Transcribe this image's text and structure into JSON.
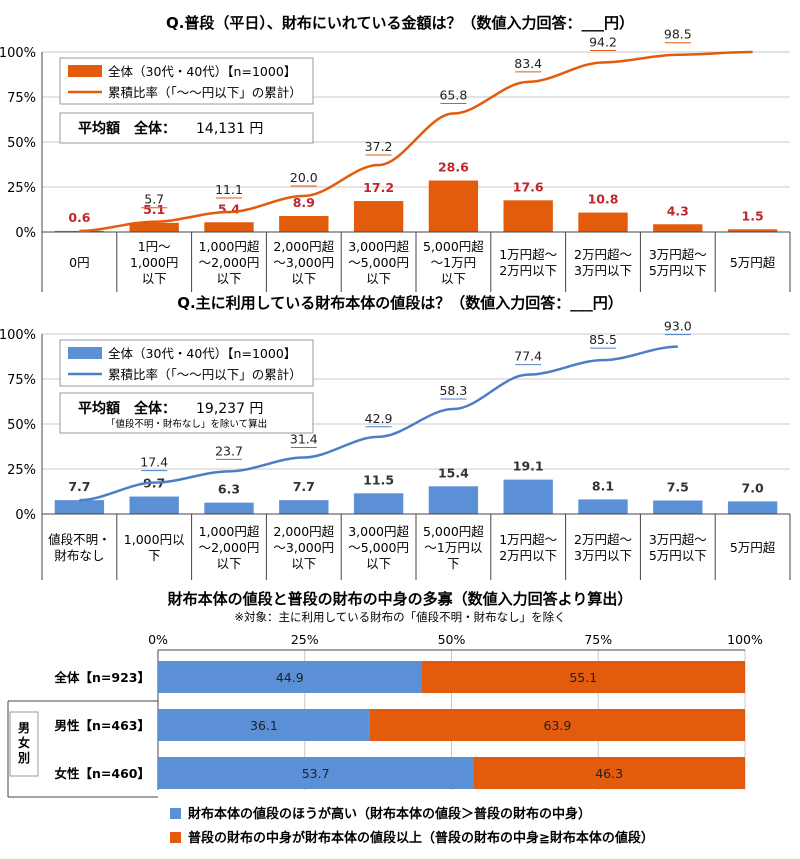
{
  "chart_data": [
    {
      "type": "bar",
      "title": "Q.普段（平日）、財布にいれている金額は？（数値入力回答：___円）",
      "categories": [
        "0円",
        "1円～\n1,000円\n以下",
        "1,000円超\n～2,000円\n以下",
        "2,000円超\n～3,000円\n以下",
        "3,000円超\n～5,000円\n以下",
        "5,000円超\n～1万円\n以下",
        "1万円超～\n2万円以下",
        "2万円超～\n3万円以下",
        "3万円超～\n5万円以下",
        "5万円超"
      ],
      "ylim": [
        0,
        100
      ],
      "yticks": [
        "0%",
        "25%",
        "50%",
        "75%",
        "100%"
      ],
      "series": [
        {
          "name": "全体（30代・40代）【n=1000】",
          "kind": "bar",
          "color": "#e35b0c",
          "label_color": "#c0262c",
          "values": [
            0.6,
            5.1,
            5.4,
            8.9,
            17.2,
            28.6,
            17.6,
            10.8,
            4.3,
            1.5
          ]
        },
        {
          "name": "累積比率（「～～円以下」の累計）",
          "kind": "line",
          "color": "#e35b0c",
          "values": [
            0.6,
            5.7,
            11.1,
            20.0,
            37.2,
            65.8,
            83.4,
            94.2,
            98.5,
            100
          ],
          "labels": [
            "",
            "5.7",
            "11.1",
            "20.0",
            "37.2",
            "65.8",
            "83.4",
            "94.2",
            "98.5",
            ""
          ]
        }
      ],
      "bar_labels": [
        "0.6",
        "5.1",
        "5.4",
        "8.9",
        "17.2",
        "28.6",
        "17.6",
        "10.8",
        "4.3",
        "1.5"
      ],
      "avg_box": {
        "label": "平均額　全体：",
        "value": "14,131 円",
        "note": ""
      },
      "grid": true,
      "legend": "top-left"
    },
    {
      "type": "bar",
      "title": "Q.主に利用している財布本体の値段は？（数値入力回答：___円）",
      "categories": [
        "値段不明・\n財布なし",
        "1,000円以\n下",
        "1,000円超\n～2,000円\n以下",
        "2,000円超\n～3,000円\n以下",
        "3,000円超\n～5,000円\n以下",
        "5,000円超\n～1万円以\n下",
        "1万円超～\n2万円以下",
        "2万円超～\n3万円以下",
        "3万円超～\n5万円以下",
        "5万円超"
      ],
      "ylim": [
        0,
        100
      ],
      "yticks": [
        "0%",
        "25%",
        "50%",
        "75%",
        "100%"
      ],
      "series": [
        {
          "name": "全体（30代・40代）【n=1000】",
          "kind": "bar",
          "color": "#5b8fd6",
          "label_color": "#333333",
          "values": [
            7.7,
            9.7,
            6.3,
            7.7,
            11.5,
            15.4,
            19.1,
            8.1,
            7.5,
            7.0
          ]
        },
        {
          "name": "累積比率（「～～円以下」の累計）",
          "kind": "line",
          "color": "#4a7fc8",
          "values": [
            7.7,
            17.4,
            23.7,
            31.4,
            42.9,
            58.3,
            77.4,
            85.5,
            93.0,
            null
          ],
          "labels": [
            "",
            "17.4",
            "23.7",
            "31.4",
            "42.9",
            "58.3",
            "77.4",
            "85.5",
            "93.0",
            ""
          ]
        }
      ],
      "bar_labels": [
        "7.7",
        "9.7",
        "6.3",
        "7.7",
        "11.5",
        "15.4",
        "19.1",
        "8.1",
        "7.5",
        "7.0"
      ],
      "avg_box": {
        "label": "平均額　全体：",
        "value": "19,237 円",
        "note": "「値段不明・財布なし」を除いて算出"
      },
      "grid": true,
      "legend": "top-left"
    },
    {
      "type": "bar",
      "orientation": "horizontal-stacked",
      "title": "財布本体の値段と普段の財布の中身の多寡（数値入力回答より算出）",
      "subtitle": "※対象：主に利用している財布の「値段不明・財布なし」を除く",
      "xticks": [
        "0%",
        "25%",
        "50%",
        "75%",
        "100%"
      ],
      "group_label": "男\n女\n別",
      "categories": [
        "全体【n=923】",
        "男性【n=463】",
        "女性【n=460】"
      ],
      "series": [
        {
          "name": "財布本体の値段のほうが高い（財布本体の値段＞普段の財布の中身）",
          "color": "#5b8fd6",
          "values": [
            44.9,
            36.1,
            53.7
          ]
        },
        {
          "name": "普段の財布の中身が財布本体の値段以上（普段の財布の中身≧財布本体の値段）",
          "color": "#e35b0c",
          "values": [
            55.1,
            63.9,
            46.3
          ]
        }
      ],
      "value_labels": [
        [
          "44.9",
          "55.1"
        ],
        [
          "36.1",
          "63.9"
        ],
        [
          "53.7",
          "46.3"
        ]
      ],
      "legend": "bottom"
    }
  ]
}
